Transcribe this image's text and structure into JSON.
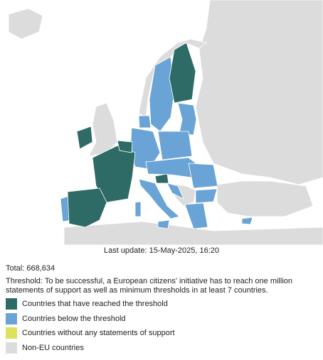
{
  "map": {
    "last_update": "Last update: 15-May-2025, 16:20"
  },
  "summary": {
    "total": "Total: 668,634",
    "threshold": "Threshold: To be successful, a European citizens' initiative has to reach one million statements of support as well as minimum thresholds in at least 7 countries."
  },
  "legend": {
    "items": [
      {
        "label": "Countries that have reached the threshold",
        "color": "#2e6b66"
      },
      {
        "label": "Countries below the threshold",
        "color": "#6aa3d5"
      },
      {
        "label": "Countries without any statements of support",
        "color": "#dce35a"
      },
      {
        "label": "Non-EU countries",
        "color": "#dcdcdc"
      }
    ]
  }
}
